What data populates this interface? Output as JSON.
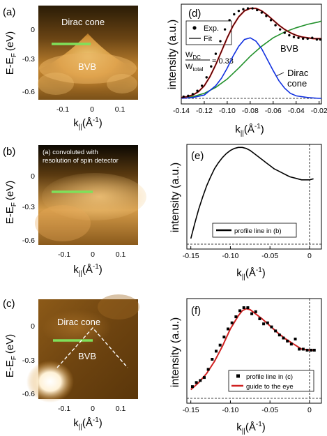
{
  "figure": {
    "panels": [
      {
        "id": "a",
        "label": "(a)",
        "ylabel": "E-E",
        "ylabel_sub": "F",
        "ylabel_unit": "(eV)",
        "yticks": [
          "0",
          "-0.3",
          "-0.6"
        ],
        "xticks": [
          "-0.1",
          "0",
          "0.1"
        ],
        "xlabel": "k",
        "xlabel_sub": "||",
        "xlabel_unit": "(Å",
        "xlabel_sup": "-1",
        "xlabel_close": ")",
        "texts": [
          "Dirac cone",
          "BVB"
        ]
      },
      {
        "id": "b",
        "label": "(b)",
        "ylabel": "E-E",
        "ylabel_sub": "F",
        "ylabel_unit": "(eV)",
        "yticks": [
          "0",
          "-0.3",
          "-0.6"
        ],
        "xticks": [
          "-0.1",
          "0",
          "0.1"
        ],
        "xlabel": "k",
        "xlabel_sub": "||",
        "xlabel_unit": "(Å",
        "xlabel_sup": "-1",
        "xlabel_close": ")",
        "texts": [
          "(a) convoluted with",
          "resolution of spin detector"
        ]
      },
      {
        "id": "c",
        "label": "(c)",
        "ylabel": "E-E",
        "ylabel_sub": "F",
        "ylabel_unit": "(eV)",
        "yticks": [
          "0",
          "-0.3",
          "-0.6"
        ],
        "xticks": [
          "-0.1",
          "0",
          "0.1"
        ],
        "xlabel": "k",
        "xlabel_sub": "||",
        "xlabel_unit": "(Å",
        "xlabel_sup": "-1",
        "xlabel_close": ")",
        "texts": [
          "Dirac cone",
          "BVB"
        ]
      }
    ],
    "colors": {
      "green_line": "#7fe05a",
      "blue": "#1030e0",
      "green_curve": "#20902a",
      "red": "#d02020",
      "exp": "#000000"
    }
  },
  "chart_data": [
    {
      "type": "line",
      "panel": "d",
      "label": "(d)",
      "ylabel": "intensity (a.u.)",
      "xlabel": "k",
      "xlabel_sub": "||",
      "xlabel_unit": "(Å",
      "xlabel_sup": "-1",
      "xlabel_close": ")",
      "xlim": [
        -0.14,
        -0.018
      ],
      "ylim": [
        0,
        1.12
      ],
      "xticks": [
        -0.14,
        -0.12,
        -0.1,
        -0.08,
        -0.06,
        -0.04,
        -0.02
      ],
      "xtick_labels": [
        "-0.14",
        "-0.12",
        "-0.10",
        "-0.08",
        "-0.06",
        "-0.04",
        "-0.02"
      ],
      "legend": [
        {
          "name": "Exp.",
          "marker": "dot"
        },
        {
          "name": "Fit",
          "marker": "line"
        }
      ],
      "annotations": {
        "ratio_num": "W",
        "ratio_num_sub": "DC",
        "ratio_den": "W",
        "ratio_den_sub": "total",
        "ratio_value": "= 0.33",
        "bvb": "BVB",
        "dirac1": "Dirac",
        "dirac2": "cone"
      },
      "series": [
        {
          "name": "Exp.",
          "x": [
            -0.138,
            -0.134,
            -0.13,
            -0.126,
            -0.122,
            -0.118,
            -0.114,
            -0.11,
            -0.106,
            -0.102,
            -0.098,
            -0.094,
            -0.09,
            -0.086,
            -0.082,
            -0.078,
            -0.074,
            -0.07,
            -0.066,
            -0.062,
            -0.058,
            -0.054,
            -0.05,
            -0.046,
            -0.042,
            -0.038,
            -0.034,
            -0.03,
            -0.026,
            -0.022,
            -0.019
          ],
          "y": [
            0.02,
            0.03,
            0.05,
            0.09,
            0.15,
            0.25,
            0.38,
            0.53,
            0.68,
            0.82,
            0.93,
            1.0,
            1.04,
            1.06,
            1.07,
            1.07,
            1.05,
            1.02,
            0.98,
            0.93,
            0.87,
            0.82,
            0.78,
            0.75,
            0.73,
            0.72,
            0.71,
            0.71,
            0.72,
            0.7,
            0.7
          ]
        },
        {
          "name": "Fit",
          "x": [
            -0.14,
            -0.135,
            -0.13,
            -0.125,
            -0.12,
            -0.115,
            -0.11,
            -0.105,
            -0.1,
            -0.095,
            -0.09,
            -0.085,
            -0.08,
            -0.075,
            -0.07,
            -0.065,
            -0.06,
            -0.055,
            -0.05,
            -0.045,
            -0.04,
            -0.035,
            -0.03,
            -0.025,
            -0.02,
            -0.018
          ],
          "y": [
            0.01,
            0.02,
            0.04,
            0.08,
            0.15,
            0.26,
            0.4,
            0.56,
            0.72,
            0.86,
            0.97,
            1.04,
            1.07,
            1.07,
            1.04,
            0.99,
            0.93,
            0.87,
            0.82,
            0.78,
            0.75,
            0.73,
            0.72,
            0.71,
            0.71,
            0.71
          ]
        },
        {
          "name": "BVB",
          "x": [
            -0.14,
            -0.13,
            -0.12,
            -0.11,
            -0.1,
            -0.09,
            -0.08,
            -0.07,
            -0.06,
            -0.05,
            -0.04,
            -0.03,
            -0.02,
            -0.018
          ],
          "y": [
            0.0,
            0.02,
            0.06,
            0.13,
            0.23,
            0.36,
            0.5,
            0.62,
            0.72,
            0.79,
            0.84,
            0.88,
            0.91,
            0.92
          ]
        },
        {
          "name": "Dirac cone",
          "x": [
            -0.14,
            -0.13,
            -0.12,
            -0.11,
            -0.105,
            -0.1,
            -0.095,
            -0.09,
            -0.085,
            -0.08,
            -0.075,
            -0.07,
            -0.065,
            -0.06,
            -0.055,
            -0.05,
            -0.045,
            -0.04,
            -0.03,
            -0.02,
            -0.018
          ],
          "y": [
            0.0,
            0.01,
            0.04,
            0.15,
            0.24,
            0.36,
            0.5,
            0.62,
            0.7,
            0.72,
            0.68,
            0.59,
            0.46,
            0.33,
            0.21,
            0.12,
            0.06,
            0.03,
            0.01,
            0.0,
            0.0
          ]
        }
      ]
    },
    {
      "type": "line",
      "panel": "e",
      "label": "(e)",
      "ylabel": "intensity (a.u.)",
      "xlabel": "k",
      "xlabel_sub": "||",
      "xlabel_unit": "(Å",
      "xlabel_sup": "-1",
      "xlabel_close": ")",
      "xlim": [
        -0.155,
        0.015
      ],
      "ylim": [
        0,
        1.0
      ],
      "xticks": [
        -0.15,
        -0.1,
        -0.05,
        0
      ],
      "xtick_labels": [
        "-0.15",
        "-0.10",
        "-0.05",
        "0"
      ],
      "legend": [
        {
          "name": "profile line in (b)",
          "marker": "line"
        }
      ],
      "series": [
        {
          "name": "profile line in (b)",
          "x": [
            -0.15,
            -0.145,
            -0.14,
            -0.135,
            -0.13,
            -0.125,
            -0.12,
            -0.115,
            -0.11,
            -0.105,
            -0.1,
            -0.095,
            -0.09,
            -0.085,
            -0.08,
            -0.075,
            -0.07,
            -0.065,
            -0.06,
            -0.055,
            -0.05,
            -0.045,
            -0.04,
            -0.035,
            -0.03,
            -0.025,
            -0.02,
            -0.015,
            -0.01,
            -0.005,
            0,
            0.005
          ],
          "y": [
            0.07,
            0.22,
            0.36,
            0.48,
            0.59,
            0.68,
            0.76,
            0.82,
            0.87,
            0.91,
            0.94,
            0.96,
            0.97,
            0.97,
            0.96,
            0.94,
            0.91,
            0.88,
            0.85,
            0.82,
            0.79,
            0.76,
            0.74,
            0.72,
            0.7,
            0.68,
            0.67,
            0.66,
            0.65,
            0.65,
            0.65,
            0.66
          ]
        }
      ]
    },
    {
      "type": "scatter",
      "panel": "f",
      "label": "(f)",
      "ylabel": "intensity (a.u.)",
      "xlabel": "k",
      "xlabel_sub": "||",
      "xlabel_unit": "(Å",
      "xlabel_sup": "-1",
      "xlabel_close": ")",
      "xlim": [
        -0.155,
        0.015
      ],
      "ylim": [
        0,
        1.0
      ],
      "xticks": [
        -0.15,
        -0.1,
        -0.05,
        0
      ],
      "xtick_labels": [
        "-0.15",
        "-0.10",
        "-0.05",
        "0"
      ],
      "legend": [
        {
          "name": "profile line in (c)",
          "marker": "square"
        },
        {
          "name": "guide to the eye",
          "marker": "line"
        }
      ],
      "series": [
        {
          "name": "profile line in (c)",
          "x": [
            -0.148,
            -0.143,
            -0.138,
            -0.133,
            -0.128,
            -0.123,
            -0.118,
            -0.113,
            -0.108,
            -0.103,
            -0.098,
            -0.093,
            -0.088,
            -0.083,
            -0.078,
            -0.073,
            -0.068,
            -0.063,
            -0.058,
            -0.053,
            -0.048,
            -0.043,
            -0.038,
            -0.033,
            -0.028,
            -0.023,
            -0.018,
            -0.013,
            -0.008,
            -0.003,
            0.002,
            0.006
          ],
          "y": [
            0.13,
            0.17,
            0.19,
            0.22,
            0.3,
            0.4,
            0.48,
            0.54,
            0.62,
            0.7,
            0.76,
            0.82,
            0.88,
            0.91,
            0.91,
            0.85,
            0.87,
            0.8,
            0.75,
            0.76,
            0.72,
            0.68,
            0.64,
            0.61,
            0.58,
            0.55,
            0.6,
            0.5,
            0.5,
            0.49,
            0.49,
            0.49
          ]
        },
        {
          "name": "guide to the eye",
          "x": [
            -0.15,
            -0.14,
            -0.13,
            -0.12,
            -0.11,
            -0.1,
            -0.09,
            -0.085,
            -0.08,
            -0.075,
            -0.07,
            -0.06,
            -0.05,
            -0.04,
            -0.03,
            -0.02,
            -0.01,
            0,
            0.005
          ],
          "y": [
            0.1,
            0.17,
            0.26,
            0.38,
            0.53,
            0.7,
            0.83,
            0.88,
            0.9,
            0.89,
            0.86,
            0.8,
            0.73,
            0.66,
            0.6,
            0.55,
            0.5,
            0.49,
            0.49
          ]
        }
      ]
    }
  ]
}
